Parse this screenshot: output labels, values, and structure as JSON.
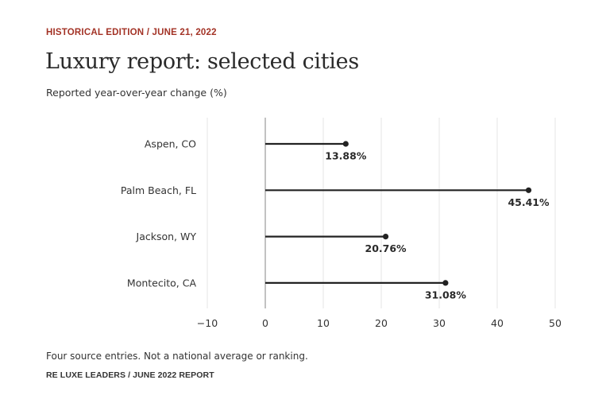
{
  "header": {
    "kicker": "HISTORICAL EDITION / JUNE 21, 2022",
    "title": "Luxury report: selected cities",
    "subtitle": "Reported year-over-year change (%)"
  },
  "footer": {
    "note": "Four source entries. Not a national average or ranking.",
    "source": "RE LUXE LEADERS / JUNE 2022 REPORT"
  },
  "colors": {
    "accent": "#a33326",
    "bar": "#222222",
    "grid": "#e4e4e4",
    "zero_line": "#999999"
  },
  "chart_data": {
    "type": "bar",
    "orientation": "horizontal",
    "style": "lollipop",
    "title": "Luxury report: selected cities",
    "subtitle": "Reported year-over-year change (%)",
    "categories": [
      "Aspen, CO",
      "Palm Beach, FL",
      "Jackson, WY",
      "Montecito, CA"
    ],
    "values": [
      13.88,
      45.41,
      20.76,
      31.08
    ],
    "value_labels": [
      "13.88%",
      "45.41%",
      "20.76%",
      "31.08%"
    ],
    "x_ticks": [
      -10,
      0,
      10,
      20,
      30,
      40,
      50
    ],
    "tick_labels": [
      "−10",
      "0",
      "10",
      "20",
      "30",
      "40",
      "50"
    ],
    "xlim": [
      -10,
      50
    ],
    "grid": true,
    "legend": "none"
  }
}
